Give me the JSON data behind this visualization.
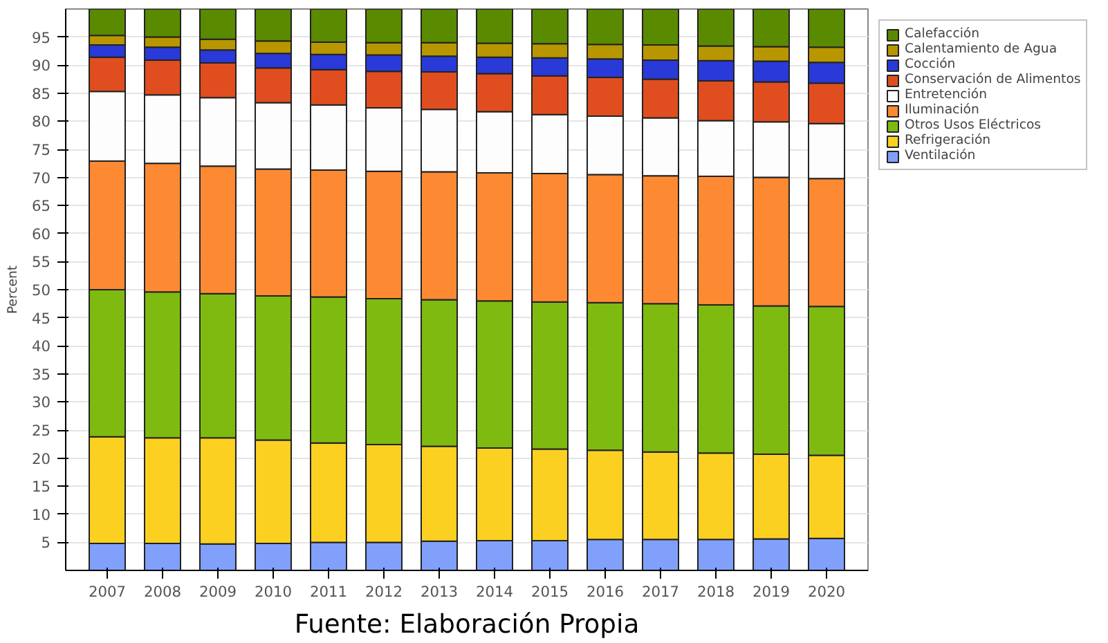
{
  "chart_data": {
    "type": "bar",
    "stacked": true,
    "ylabel": "Percent",
    "annotations": [
      "Fuente: Elaboración Propia"
    ],
    "categories": [
      "2007",
      "2008",
      "2009",
      "2010",
      "2011",
      "2012",
      "2013",
      "2014",
      "2015",
      "2016",
      "2017",
      "2018",
      "2019",
      "2020"
    ],
    "ylim": [
      0,
      100
    ],
    "yticks": [
      5,
      10,
      15,
      20,
      25,
      30,
      35,
      40,
      45,
      50,
      55,
      60,
      65,
      70,
      75,
      80,
      85,
      90,
      95
    ],
    "grid": "y",
    "legend": "right",
    "series": [
      {
        "name": "Ventilación",
        "color": "#80a0fc",
        "values": [
          4.8,
          4.8,
          4.7,
          4.8,
          5.0,
          5.0,
          5.2,
          5.3,
          5.3,
          5.5,
          5.5,
          5.5,
          5.6,
          5.7
        ]
      },
      {
        "name": "Refrigeración",
        "color": "#fcd020",
        "values": [
          19.0,
          18.8,
          18.9,
          18.4,
          17.7,
          17.4,
          16.9,
          16.5,
          16.3,
          15.9,
          15.6,
          15.4,
          15.1,
          14.8
        ]
      },
      {
        "name": "Otros Usos Eléctricos",
        "color": "#7fba10",
        "values": [
          26.2,
          26.0,
          25.7,
          25.7,
          26.0,
          26.0,
          26.1,
          26.2,
          26.2,
          26.3,
          26.4,
          26.4,
          26.4,
          26.5
        ]
      },
      {
        "name": "Iluminación",
        "color": "#fd8a32",
        "values": [
          22.9,
          22.9,
          22.7,
          22.6,
          22.6,
          22.7,
          22.8,
          22.8,
          22.9,
          22.8,
          22.8,
          22.9,
          22.9,
          22.8
        ]
      },
      {
        "name": "Entretención",
        "color": "#fdfdfd",
        "values": [
          12.4,
          12.2,
          12.2,
          11.8,
          11.6,
          11.3,
          11.1,
          10.9,
          10.5,
          10.4,
          10.3,
          9.9,
          9.9,
          9.8
        ]
      },
      {
        "name": "Conservación de Alimentos",
        "color": "#e04e20",
        "values": [
          6.1,
          6.2,
          6.2,
          6.2,
          6.3,
          6.5,
          6.7,
          6.8,
          6.9,
          6.9,
          6.9,
          7.1,
          7.1,
          7.2
        ]
      },
      {
        "name": "Cocción",
        "color": "#2a3ad8",
        "values": [
          2.2,
          2.3,
          2.3,
          2.6,
          2.7,
          2.9,
          2.8,
          2.9,
          3.2,
          3.3,
          3.4,
          3.6,
          3.7,
          3.7
        ]
      },
      {
        "name": "Calentamiento de Agua",
        "color": "#b89600",
        "values": [
          1.7,
          1.8,
          1.9,
          2.2,
          2.2,
          2.2,
          2.4,
          2.5,
          2.5,
          2.6,
          2.7,
          2.6,
          2.6,
          2.7
        ]
      },
      {
        "name": "Calefacción",
        "color": "#5a8a00",
        "values": [
          4.7,
          5.0,
          5.4,
          5.7,
          5.9,
          6.0,
          6.0,
          6.1,
          6.2,
          6.3,
          6.4,
          6.6,
          6.7,
          6.8
        ]
      }
    ]
  }
}
